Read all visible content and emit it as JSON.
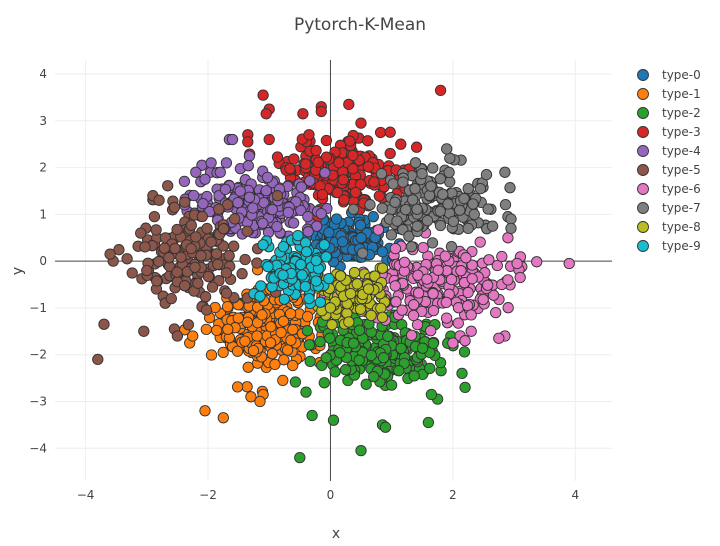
{
  "chart_data": {
    "type": "scatter",
    "title": "Pytorch-K-Mean",
    "xlabel": "x",
    "ylabel": "y",
    "xlim": [
      -4.5,
      4.6
    ],
    "ylim": [
      -4.7,
      4.3
    ],
    "x_ticks": [
      -4,
      -2,
      0,
      2,
      4
    ],
    "y_ticks": [
      -4,
      -3,
      -2,
      -1,
      0,
      1,
      2,
      3,
      4
    ],
    "x_tick_labels": [
      "−4",
      "−2",
      "0",
      "2",
      "4"
    ],
    "y_tick_labels": [
      "−4",
      "−3",
      "−2",
      "−1",
      "0",
      "1",
      "2",
      "3",
      "4"
    ],
    "grid": true,
    "zero_lines": true,
    "legend_position": "right",
    "series": [
      {
        "name": "type-0",
        "color": "#1f77b4",
        "center": [
          0.35,
          0.45
        ],
        "sx": 0.28,
        "sy": 0.22,
        "count": 160,
        "points": [
          [
            0.1,
            0.9
          ],
          [
            0.7,
            0.95
          ],
          [
            -0.15,
            0.3
          ],
          [
            0.85,
            0.2
          ]
        ]
      },
      {
        "name": "type-1",
        "color": "#ff7f0e",
        "center": [
          -1.0,
          -1.4
        ],
        "sx": 0.45,
        "sy": 0.45,
        "count": 230,
        "points": [
          [
            -2.05,
            -3.2
          ],
          [
            -1.75,
            -3.35
          ],
          [
            -1.3,
            -2.9
          ],
          [
            -1.1,
            -2.85
          ],
          [
            -2.3,
            -1.75
          ],
          [
            -2.25,
            -1.6
          ],
          [
            -1.15,
            -3.0
          ]
        ]
      },
      {
        "name": "type-2",
        "color": "#2ca02c",
        "center": [
          0.75,
          -1.85
        ],
        "sx": 0.55,
        "sy": 0.35,
        "count": 230,
        "points": [
          [
            -0.5,
            -4.2
          ],
          [
            0.5,
            -4.05
          ],
          [
            -0.3,
            -3.3
          ],
          [
            0.05,
            -3.4
          ],
          [
            0.85,
            -3.5
          ],
          [
            0.9,
            -3.55
          ],
          [
            1.6,
            -3.45
          ],
          [
            2.2,
            -2.7
          ],
          [
            2.15,
            -2.4
          ],
          [
            1.75,
            -2.95
          ],
          [
            1.65,
            -2.85
          ],
          [
            1.0,
            -2.65
          ],
          [
            -0.4,
            -2.8
          ],
          [
            -0.1,
            -2.6
          ]
        ]
      },
      {
        "name": "type-3",
        "color": "#d62728",
        "center": [
          0.2,
          1.9
        ],
        "sx": 0.55,
        "sy": 0.35,
        "count": 200,
        "points": [
          [
            1.8,
            3.65
          ],
          [
            -1.1,
            3.55
          ],
          [
            -1.0,
            3.25
          ],
          [
            -1.05,
            3.15
          ],
          [
            0.3,
            3.35
          ],
          [
            -0.15,
            3.3
          ],
          [
            -0.15,
            3.2
          ],
          [
            -0.45,
            3.15
          ],
          [
            -1.35,
            2.7
          ],
          [
            -1.35,
            2.55
          ],
          [
            -1.0,
            2.6
          ],
          [
            -0.35,
            2.7
          ],
          [
            0.5,
            2.95
          ],
          [
            1.15,
            2.5
          ]
        ]
      },
      {
        "name": "type-4",
        "color": "#9467bd",
        "center": [
          -1.2,
          1.2
        ],
        "sx": 0.5,
        "sy": 0.32,
        "count": 200,
        "points": [
          [
            -1.65,
            2.6
          ],
          [
            -1.6,
            2.6
          ],
          [
            -2.1,
            2.05
          ],
          [
            -1.95,
            2.1
          ],
          [
            -1.7,
            2.1
          ],
          [
            -2.2,
            1.9
          ],
          [
            -2.05,
            1.75
          ],
          [
            -1.8,
            1.9
          ]
        ]
      },
      {
        "name": "type-5",
        "color": "#8c564b",
        "center": [
          -2.2,
          0.15
        ],
        "sx": 0.45,
        "sy": 0.55,
        "count": 170,
        "points": [
          [
            -3.8,
            -2.1
          ],
          [
            -3.7,
            -1.35
          ],
          [
            -3.6,
            0.15
          ],
          [
            -3.05,
            -1.5
          ],
          [
            -3.1,
            0.6
          ],
          [
            -2.9,
            1.4
          ],
          [
            -2.8,
            1.3
          ],
          [
            -2.55,
            1.15
          ],
          [
            -3.0,
            -0.2
          ],
          [
            -2.7,
            -0.9
          ],
          [
            -2.6,
            -0.8
          ],
          [
            -2.55,
            -1.45
          ],
          [
            -2.5,
            -1.6
          ]
        ]
      },
      {
        "name": "type-6",
        "color": "#e377c2",
        "center": [
          1.7,
          -0.5
        ],
        "sx": 0.55,
        "sy": 0.45,
        "count": 200,
        "points": [
          [
            3.9,
            -0.05
          ],
          [
            3.1,
            -0.35
          ],
          [
            3.05,
            -0.05
          ],
          [
            2.9,
            0.5
          ],
          [
            2.8,
            0.1
          ],
          [
            2.85,
            -1.6
          ],
          [
            2.75,
            -1.65
          ],
          [
            2.3,
            -1.5
          ],
          [
            2.2,
            -1.7
          ],
          [
            2.0,
            -1.75
          ],
          [
            2.3,
            -1.15
          ],
          [
            2.7,
            -1.1
          ],
          [
            2.8,
            -0.5
          ],
          [
            2.9,
            -0.4
          ]
        ]
      },
      {
        "name": "type-7",
        "color": "#7f7f7f",
        "center": [
          1.7,
          1.2
        ],
        "sx": 0.45,
        "sy": 0.35,
        "count": 170,
        "points": [
          [
            2.85,
            1.9
          ],
          [
            2.55,
            1.85
          ],
          [
            2.45,
            1.55
          ],
          [
            2.25,
            1.55
          ],
          [
            1.95,
            2.2
          ],
          [
            1.9,
            2.4
          ],
          [
            2.9,
            0.95
          ],
          [
            2.95,
            0.9
          ],
          [
            2.95,
            0.7
          ],
          [
            2.65,
            0.75
          ],
          [
            2.25,
            0.7
          ],
          [
            2.35,
            1.0
          ]
        ]
      },
      {
        "name": "type-8",
        "color": "#bcbd22",
        "center": [
          0.35,
          -0.7
        ],
        "sx": 0.25,
        "sy": 0.25,
        "count": 140,
        "points": [
          [
            0.85,
            -0.15
          ],
          [
            0.0,
            -1.0
          ],
          [
            0.85,
            -1.2
          ],
          [
            0.3,
            -1.3
          ]
        ]
      },
      {
        "name": "type-9",
        "color": "#17becf",
        "center": [
          -0.6,
          -0.2
        ],
        "sx": 0.25,
        "sy": 0.28,
        "count": 140,
        "points": [
          [
            -1.1,
            0.35
          ],
          [
            -0.1,
            0.35
          ],
          [
            -1.15,
            -0.75
          ],
          [
            -0.35,
            -0.8
          ]
        ]
      }
    ]
  }
}
